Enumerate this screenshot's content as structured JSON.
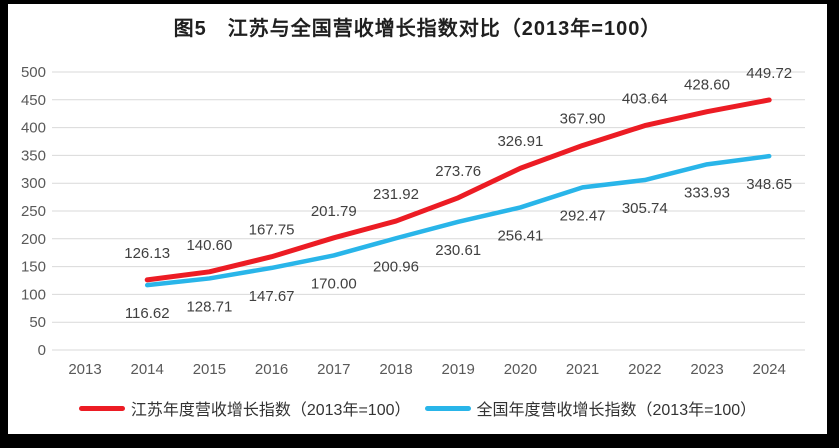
{
  "title": "图5　江苏与全国营收增长指数对比（2013年=100）",
  "colors": {
    "jiangsu_line": "#EC1C24",
    "national_line": "#29B5E9",
    "gridline": "#D9D9D9",
    "tick_text": "#595959",
    "data_label_text": "#404040",
    "frame_background": "#000000",
    "chart_background": "#FFFFFF"
  },
  "chart_data": {
    "type": "line",
    "title": "图5　江苏与全国营收增长指数对比（2013年=100）",
    "xlabel": "",
    "ylabel": "",
    "ylim": [
      0,
      500
    ],
    "ytick_step": 50,
    "yticks": [
      0,
      50,
      100,
      150,
      200,
      250,
      300,
      350,
      400,
      450,
      500
    ],
    "grid": true,
    "legend_position": "bottom",
    "categories": [
      "2013",
      "2014",
      "2015",
      "2016",
      "2017",
      "2018",
      "2019",
      "2020",
      "2021",
      "2022",
      "2023",
      "2024"
    ],
    "series": [
      {
        "name": "江苏年度营收增长指数（2013年=100）",
        "color": "#EC1C24",
        "stroke_width": 5,
        "start_index": 1,
        "label_side": "above",
        "values": [
          126.13,
          140.6,
          167.75,
          201.79,
          231.92,
          273.76,
          326.91,
          367.9,
          403.64,
          428.6,
          449.72
        ]
      },
      {
        "name": "全国年度营收增长指数（2013年=100）",
        "color": "#29B5E9",
        "stroke_width": 4.5,
        "start_index": 1,
        "label_side": "below",
        "values": [
          116.62,
          128.71,
          147.67,
          170.0,
          200.96,
          230.61,
          256.41,
          292.47,
          305.74,
          333.93,
          348.65
        ]
      }
    ]
  }
}
